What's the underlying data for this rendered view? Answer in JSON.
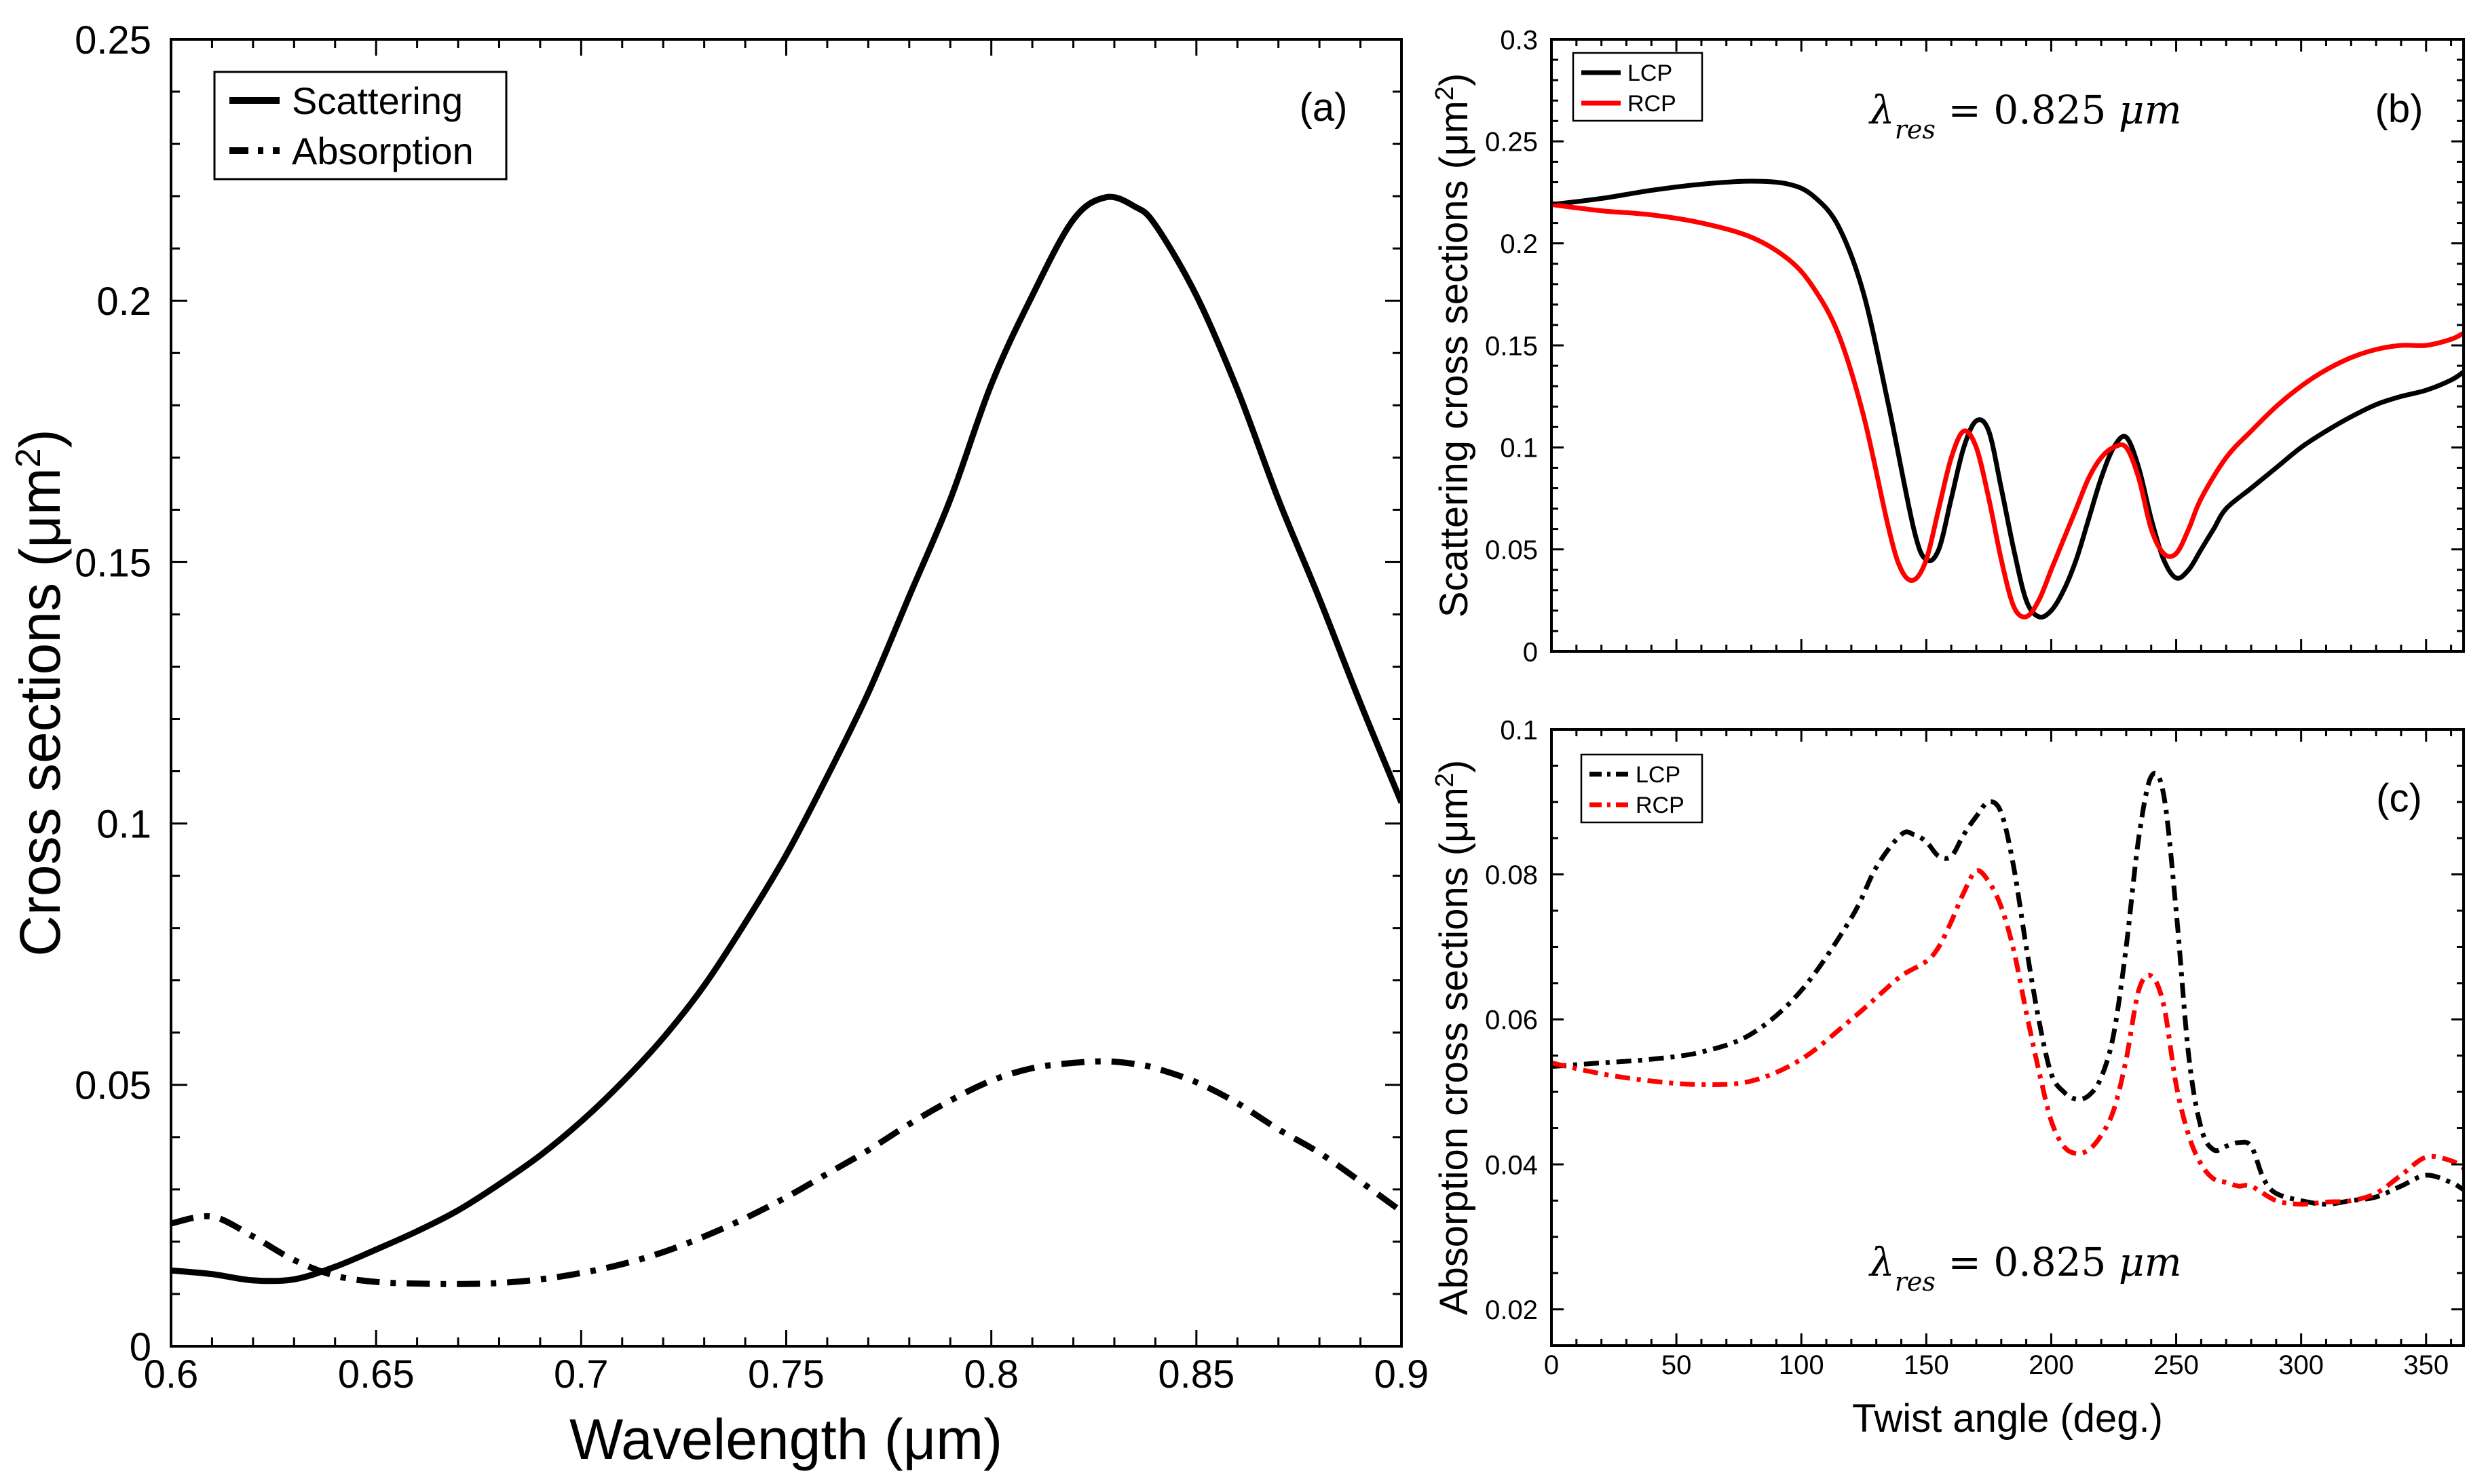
{
  "chart_data": [
    {
      "id": "a",
      "type": "line",
      "panel_label": "(a)",
      "xlabel": "Wavelength (μm)",
      "ylabel": "Cross sections (μm²)",
      "xlim": [
        0.6,
        0.9
      ],
      "ylim": [
        0,
        0.25
      ],
      "xticks": [
        0.6,
        0.65,
        0.7,
        0.75,
        0.8,
        0.85,
        0.9
      ],
      "xtick_labels": [
        "0.6",
        "0.65",
        "0.7",
        "0.75",
        "0.8",
        "0.85",
        "0.9"
      ],
      "yticks": [
        0,
        0.05,
        0.1,
        0.15,
        0.2,
        0.25
      ],
      "ytick_labels": [
        "0",
        "0.05",
        "0.1",
        "0.15",
        "0.2",
        "0.25"
      ],
      "legend_position": "top-left",
      "series": [
        {
          "name": "Scattering",
          "color": "#000000",
          "dash": "solid",
          "x": [
            0.6,
            0.61,
            0.62,
            0.63,
            0.64,
            0.65,
            0.66,
            0.67,
            0.68,
            0.69,
            0.7,
            0.71,
            0.72,
            0.73,
            0.74,
            0.75,
            0.76,
            0.77,
            0.78,
            0.79,
            0.8,
            0.81,
            0.82,
            0.828,
            0.835,
            0.84,
            0.85,
            0.86,
            0.87,
            0.88,
            0.89,
            0.9
          ],
          "y": [
            0.0145,
            0.0138,
            0.0126,
            0.0128,
            0.0152,
            0.0185,
            0.022,
            0.026,
            0.031,
            0.0365,
            0.043,
            0.0505,
            0.059,
            0.069,
            0.081,
            0.094,
            0.109,
            0.125,
            0.1435,
            0.162,
            0.184,
            0.201,
            0.2155,
            0.2198,
            0.218,
            0.2145,
            0.201,
            0.183,
            0.162,
            0.143,
            0.123,
            0.104
          ]
        },
        {
          "name": "Absorption",
          "color": "#000000",
          "dash": "dashdot",
          "x": [
            0.6,
            0.61,
            0.62,
            0.63,
            0.64,
            0.65,
            0.66,
            0.67,
            0.68,
            0.69,
            0.7,
            0.71,
            0.72,
            0.73,
            0.74,
            0.75,
            0.76,
            0.77,
            0.78,
            0.79,
            0.8,
            0.81,
            0.82,
            0.828,
            0.835,
            0.84,
            0.85,
            0.86,
            0.87,
            0.88,
            0.89,
            0.9
          ],
          "y": [
            0.0235,
            0.0248,
            0.021,
            0.0165,
            0.0135,
            0.0123,
            0.012,
            0.0119,
            0.0121,
            0.0128,
            0.014,
            0.0157,
            0.018,
            0.021,
            0.0245,
            0.0285,
            0.033,
            0.0375,
            0.0425,
            0.047,
            0.0508,
            0.0532,
            0.0542,
            0.0545,
            0.054,
            0.0532,
            0.0505,
            0.0465,
            0.0415,
            0.037,
            0.0315,
            0.0258
          ]
        }
      ]
    },
    {
      "id": "b",
      "type": "line",
      "panel_label": "(b)",
      "xlabel": "",
      "ylabel": "Scattering cross sections (μm²)",
      "annotation": "λres = 0.825 μm",
      "xlim": [
        0,
        365
      ],
      "ylim": [
        0,
        0.3
      ],
      "xticks": [
        0,
        50,
        100,
        150,
        200,
        250,
        300,
        350
      ],
      "xtick_labels": [],
      "yticks": [
        0,
        0.05,
        0.1,
        0.15,
        0.2,
        0.25,
        0.3
      ],
      "ytick_labels": [
        "0",
        "0.05",
        "0.1",
        "0.15",
        "0.2",
        "0.25",
        "0.3"
      ],
      "legend_position": "top-left",
      "series": [
        {
          "name": "LCP",
          "color": "#000000",
          "dash": "solid",
          "x": [
            0,
            20,
            40,
            60,
            80,
            95,
            105,
            115,
            125,
            135,
            145,
            150,
            155,
            160,
            165,
            170,
            175,
            180,
            185,
            190,
            195,
            200,
            205,
            210,
            215,
            220,
            225,
            230,
            235,
            240,
            245,
            250,
            255,
            260,
            265,
            270,
            280,
            290,
            300,
            310,
            320,
            330,
            340,
            350,
            360,
            365
          ],
          "y": [
            0.219,
            0.222,
            0.226,
            0.229,
            0.2305,
            0.229,
            0.223,
            0.208,
            0.175,
            0.12,
            0.06,
            0.045,
            0.05,
            0.075,
            0.1,
            0.113,
            0.108,
            0.08,
            0.05,
            0.025,
            0.017,
            0.02,
            0.03,
            0.045,
            0.065,
            0.085,
            0.1,
            0.105,
            0.09,
            0.065,
            0.045,
            0.036,
            0.04,
            0.05,
            0.06,
            0.07,
            0.08,
            0.09,
            0.1,
            0.108,
            0.115,
            0.121,
            0.125,
            0.128,
            0.133,
            0.137
          ]
        },
        {
          "name": "RCP",
          "color": "#ff0000",
          "dash": "solid",
          "x": [
            0,
            20,
            40,
            60,
            80,
            95,
            105,
            115,
            125,
            135,
            140,
            145,
            150,
            155,
            160,
            165,
            170,
            175,
            180,
            185,
            190,
            195,
            200,
            205,
            210,
            215,
            220,
            225,
            230,
            235,
            240,
            245,
            250,
            255,
            260,
            270,
            280,
            290,
            300,
            310,
            320,
            330,
            340,
            350,
            360,
            365
          ],
          "y": [
            0.219,
            0.216,
            0.214,
            0.21,
            0.203,
            0.192,
            0.178,
            0.155,
            0.115,
            0.06,
            0.04,
            0.035,
            0.045,
            0.07,
            0.095,
            0.108,
            0.1,
            0.075,
            0.045,
            0.022,
            0.017,
            0.025,
            0.04,
            0.055,
            0.07,
            0.085,
            0.095,
            0.1,
            0.1,
            0.085,
            0.06,
            0.048,
            0.048,
            0.06,
            0.075,
            0.095,
            0.108,
            0.12,
            0.13,
            0.138,
            0.144,
            0.148,
            0.15,
            0.15,
            0.153,
            0.156
          ]
        }
      ]
    },
    {
      "id": "c",
      "type": "line",
      "panel_label": "(c)",
      "xlabel": "Twist angle (deg.)",
      "ylabel": "Absorption cross sections (μm²)",
      "annotation": "λres = 0.825 μm",
      "xlim": [
        0,
        365
      ],
      "ylim": [
        0.015,
        0.1
      ],
      "xticks": [
        0,
        50,
        100,
        150,
        200,
        250,
        300,
        350
      ],
      "xtick_labels": [
        "0",
        "50",
        "100",
        "150",
        "200",
        "250",
        "300",
        "350"
      ],
      "yticks": [
        0.02,
        0.04,
        0.06,
        0.08,
        0.1
      ],
      "ytick_labels": [
        "0.02",
        "0.04",
        "0.06",
        "0.08",
        "0.1"
      ],
      "legend_position": "top-left",
      "series": [
        {
          "name": "LCP",
          "color": "#000000",
          "dash": "dashdot",
          "x": [
            0,
            20,
            40,
            60,
            80,
            100,
            120,
            130,
            140,
            145,
            150,
            155,
            160,
            165,
            170,
            175,
            180,
            185,
            190,
            195,
            200,
            205,
            210,
            215,
            220,
            225,
            230,
            235,
            240,
            245,
            250,
            255,
            260,
            265,
            270,
            275,
            280,
            285,
            290,
            300,
            310,
            320,
            330,
            340,
            350,
            360,
            365
          ],
          "y": [
            0.0535,
            0.054,
            0.0545,
            0.0555,
            0.058,
            0.064,
            0.074,
            0.081,
            0.0855,
            0.0855,
            0.0845,
            0.0825,
            0.0825,
            0.0855,
            0.088,
            0.09,
            0.0885,
            0.081,
            0.07,
            0.06,
            0.0525,
            0.05,
            0.049,
            0.0495,
            0.052,
            0.058,
            0.07,
            0.085,
            0.0935,
            0.091,
            0.075,
            0.055,
            0.045,
            0.042,
            0.0425,
            0.043,
            0.0425,
            0.038,
            0.036,
            0.035,
            0.0345,
            0.035,
            0.0355,
            0.037,
            0.0385,
            0.0375,
            0.0365
          ]
        },
        {
          "name": "RCP",
          "color": "#ff0000",
          "dash": "dashdot",
          "x": [
            0,
            20,
            40,
            60,
            80,
            100,
            120,
            130,
            140,
            150,
            155,
            160,
            165,
            170,
            175,
            180,
            185,
            190,
            195,
            200,
            205,
            210,
            215,
            220,
            225,
            230,
            235,
            240,
            245,
            250,
            255,
            260,
            265,
            270,
            275,
            280,
            290,
            300,
            310,
            320,
            330,
            340,
            350,
            360,
            365
          ],
          "y": [
            0.054,
            0.0525,
            0.0515,
            0.051,
            0.0515,
            0.0545,
            0.06,
            0.063,
            0.066,
            0.068,
            0.07,
            0.0735,
            0.0775,
            0.0805,
            0.079,
            0.0755,
            0.0695,
            0.061,
            0.053,
            0.046,
            0.0425,
            0.0415,
            0.042,
            0.044,
            0.0475,
            0.0545,
            0.064,
            0.066,
            0.062,
            0.051,
            0.044,
            0.04,
            0.038,
            0.0375,
            0.037,
            0.037,
            0.035,
            0.0345,
            0.0348,
            0.035,
            0.036,
            0.0385,
            0.041,
            0.0405,
            0.0395
          ]
        }
      ]
    }
  ]
}
